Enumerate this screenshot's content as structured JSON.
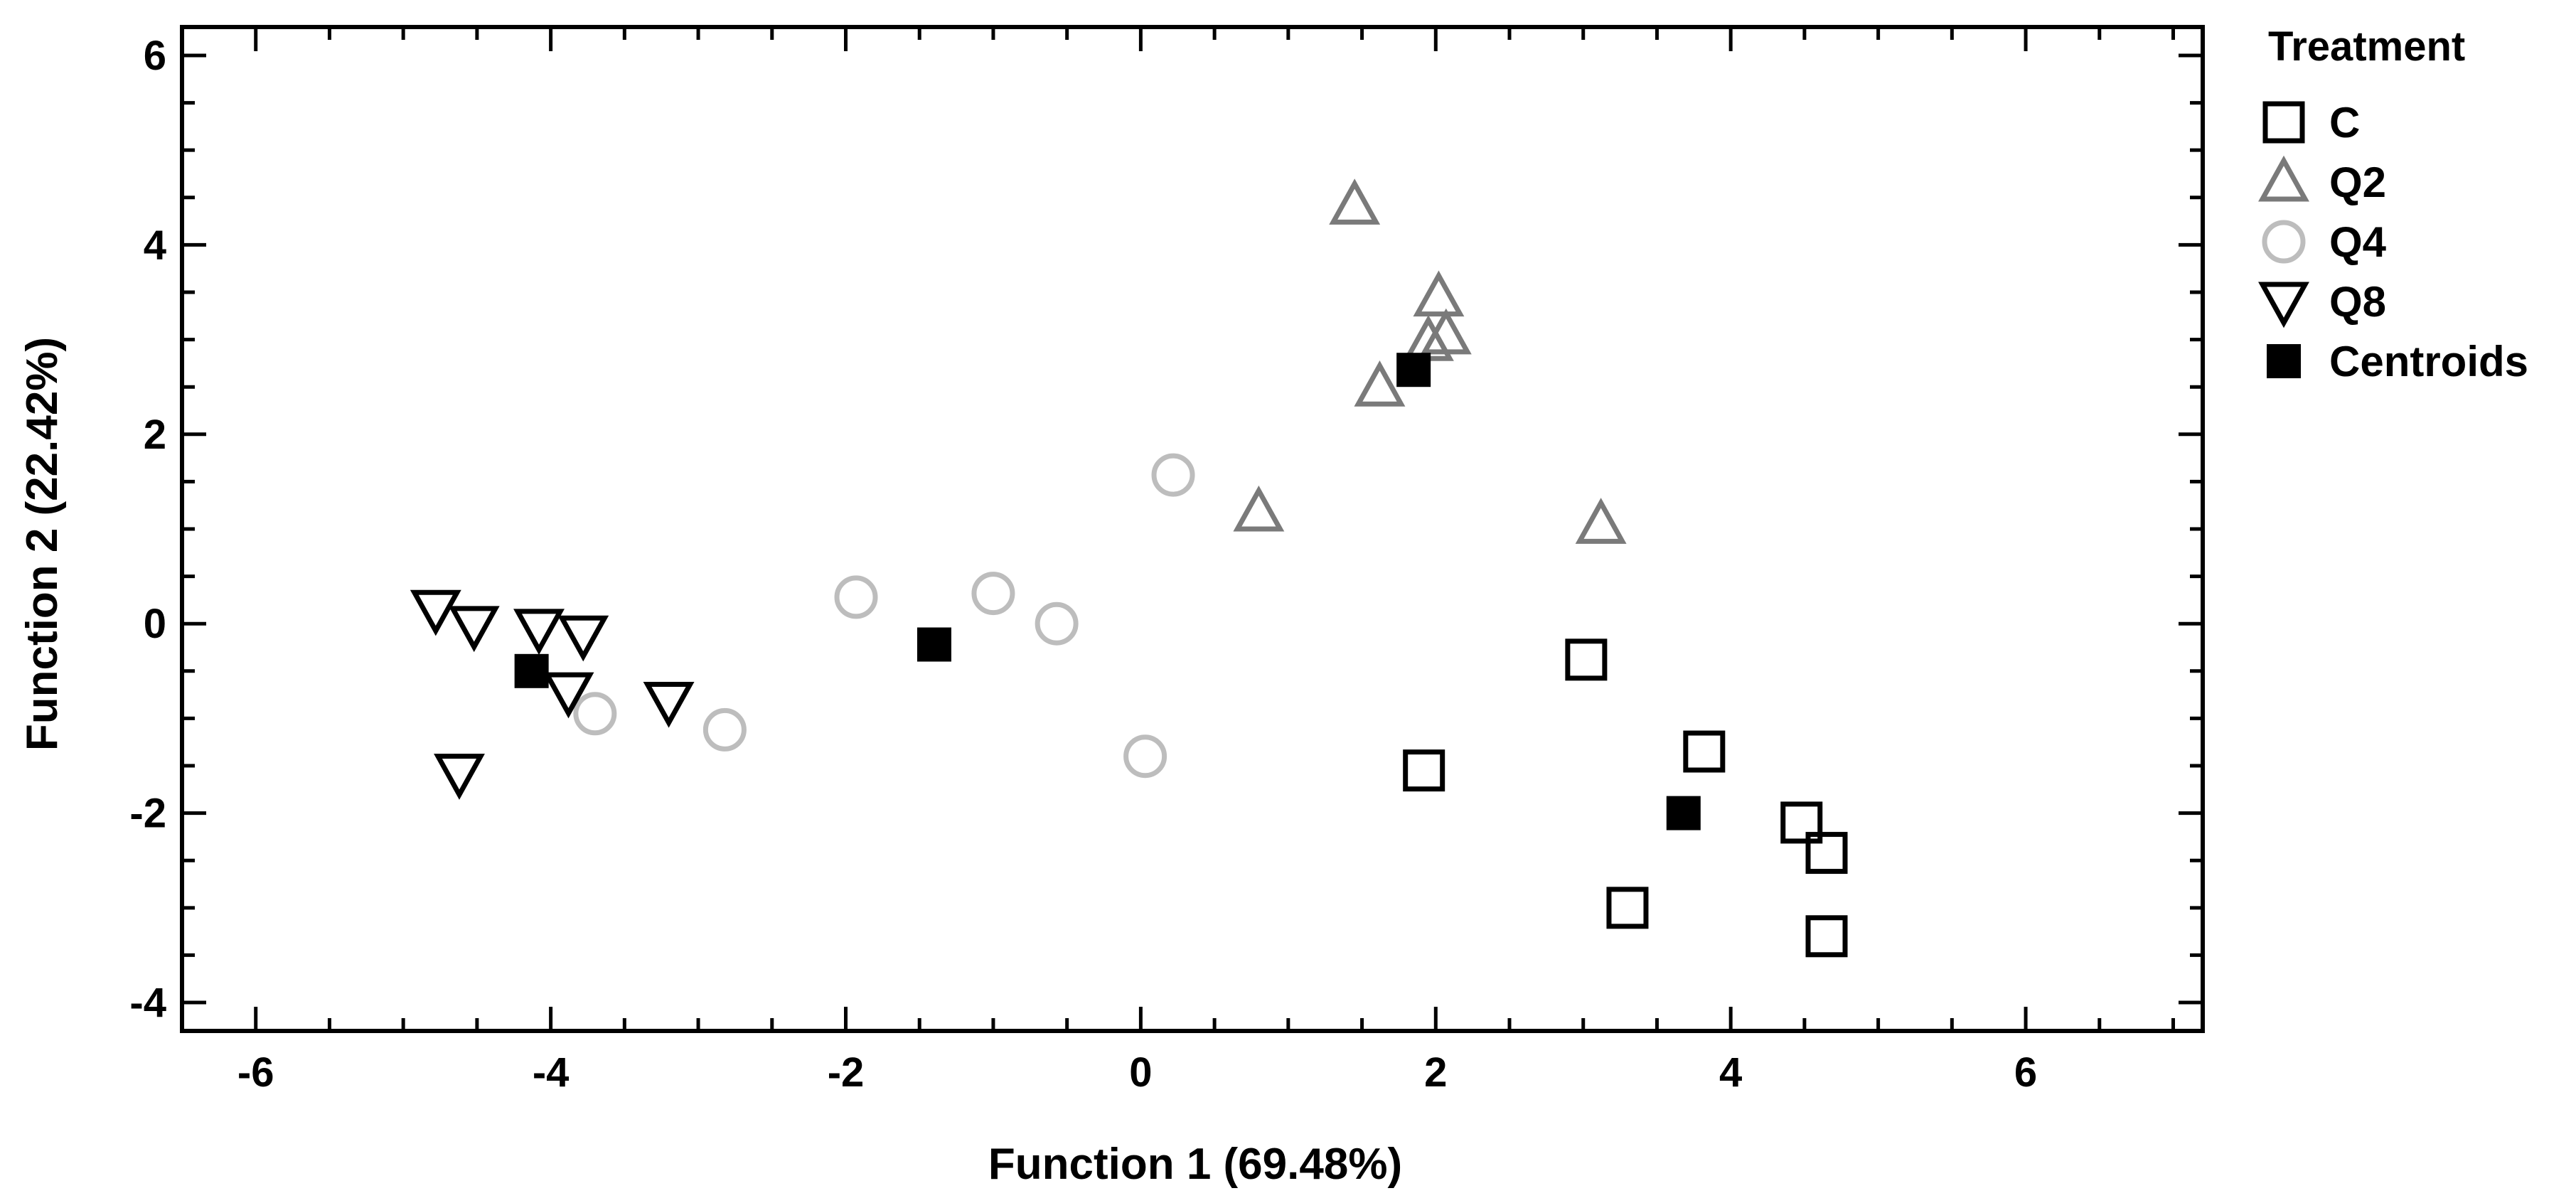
{
  "chart_data": {
    "type": "scatter",
    "title": "",
    "xlabel": "Function 1 (69.48%)",
    "ylabel": "Function 2 (22.42%)",
    "xlim": [
      -6.5,
      7.2
    ],
    "ylim": [
      -4.3,
      6.3
    ],
    "xticks": [
      -6,
      -4,
      -2,
      0,
      2,
      4,
      6
    ],
    "yticks": [
      -4,
      -2,
      0,
      2,
      4,
      6
    ],
    "grid": false,
    "legend": {
      "title": "Treatment",
      "position": "right",
      "entries": [
        {
          "label": "C",
          "marker": "square-open",
          "color": "#000000"
        },
        {
          "label": "Q2",
          "marker": "triangle-up-open",
          "color": "#7a7a7a"
        },
        {
          "label": "Q4",
          "marker": "circle-open",
          "color": "#bdbdbd"
        },
        {
          "label": "Q8",
          "marker": "triangle-down-open",
          "color": "#000000"
        },
        {
          "label": "Centroids",
          "marker": "square-filled",
          "color": "#000000"
        }
      ]
    },
    "series": [
      {
        "name": "C",
        "marker": "square-open",
        "color": "#000000",
        "points": [
          [
            3.02,
            -0.38
          ],
          [
            1.92,
            -1.55
          ],
          [
            3.82,
            -1.35
          ],
          [
            4.48,
            -2.1
          ],
          [
            4.65,
            -2.42
          ],
          [
            3.3,
            -3.0
          ],
          [
            4.65,
            -3.3
          ]
        ]
      },
      {
        "name": "Q2",
        "marker": "triangle-up-open",
        "color": "#7a7a7a",
        "points": [
          [
            1.45,
            4.42
          ],
          [
            2.02,
            3.45
          ],
          [
            1.95,
            2.98
          ],
          [
            2.07,
            3.05
          ],
          [
            1.62,
            2.5
          ],
          [
            0.8,
            1.18
          ],
          [
            3.12,
            1.05
          ]
        ]
      },
      {
        "name": "Q4",
        "marker": "circle-open",
        "color": "#bdbdbd",
        "points": [
          [
            0.22,
            1.57
          ],
          [
            -1.93,
            0.28
          ],
          [
            -1.0,
            0.32
          ],
          [
            -0.57,
            0.0
          ],
          [
            0.03,
            -1.4
          ],
          [
            -3.7,
            -0.95
          ],
          [
            -2.82,
            -1.12
          ]
        ]
      },
      {
        "name": "Q8",
        "marker": "triangle-down-open",
        "color": "#000000",
        "points": [
          [
            -4.78,
            0.15
          ],
          [
            -4.52,
            -0.02
          ],
          [
            -4.08,
            -0.05
          ],
          [
            -3.78,
            -0.12
          ],
          [
            -3.88,
            -0.72
          ],
          [
            -3.2,
            -0.82
          ],
          [
            -4.62,
            -1.58
          ]
        ]
      },
      {
        "name": "Centroids",
        "marker": "square-filled",
        "color": "#000000",
        "points": [
          [
            1.85,
            2.68
          ],
          [
            3.68,
            -2.0
          ],
          [
            -1.4,
            -0.22
          ],
          [
            -4.13,
            -0.5
          ]
        ]
      }
    ]
  }
}
